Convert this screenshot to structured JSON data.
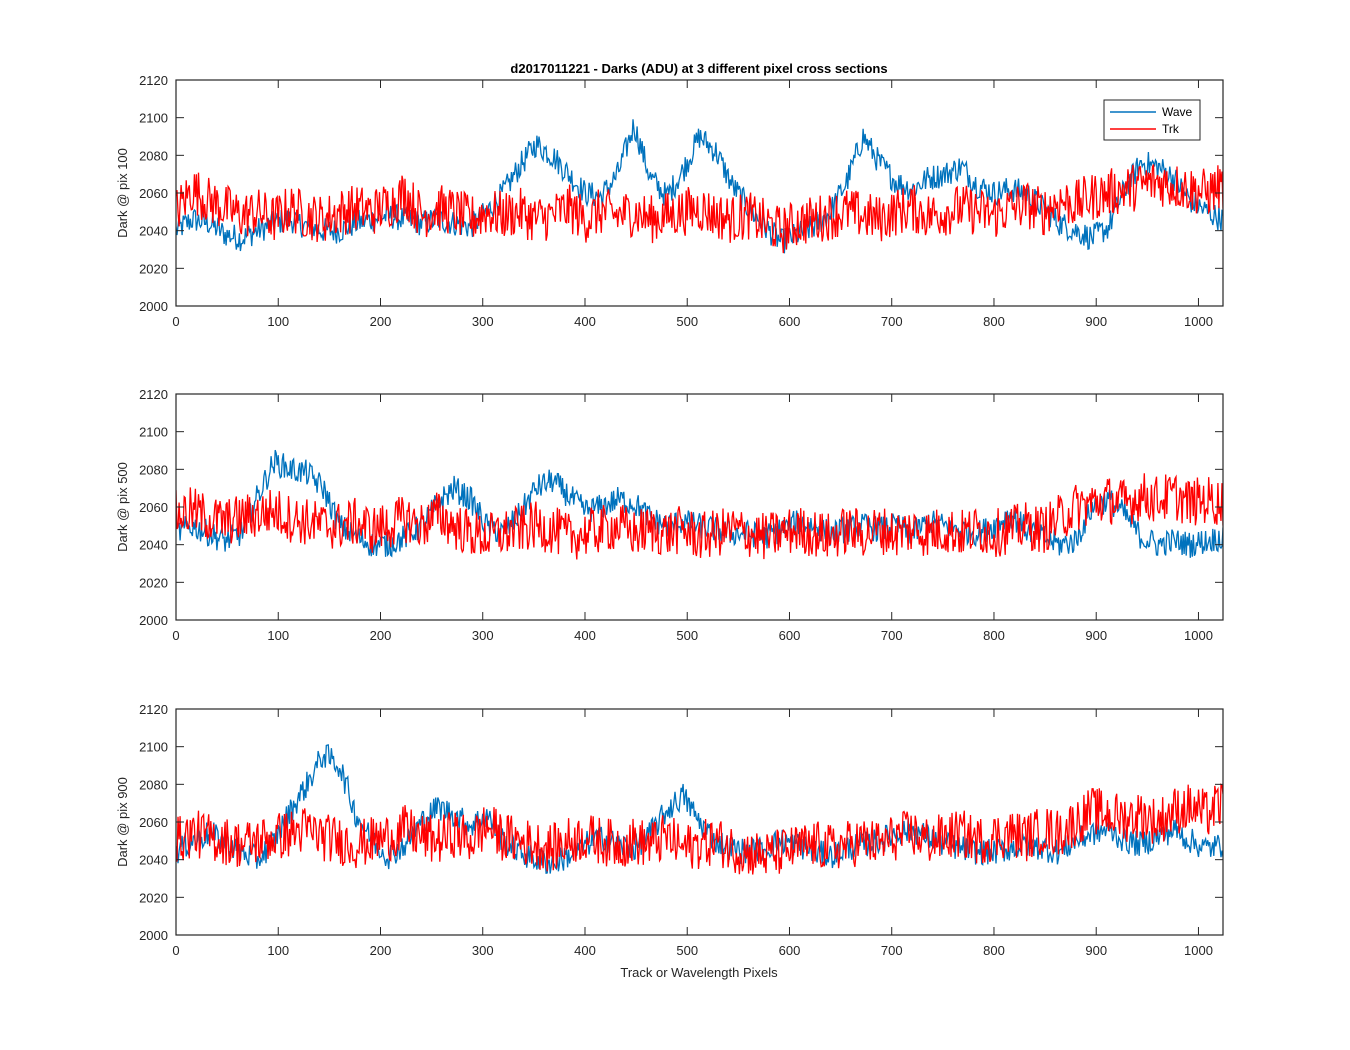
{
  "figure": {
    "title": "d2017011221 - Darks (ADU) at 3 different pixel cross sections",
    "xlabel": "Track or Wavelength Pixels"
  },
  "legend": {
    "placement": "top-right of first panel",
    "entries": [
      "Wave",
      "Trk"
    ]
  },
  "colors": {
    "Wave": "#0072BD",
    "Trk": "#FF0000",
    "axes": "#262626"
  },
  "chart_data": [
    {
      "type": "line",
      "title": "d2017011221 - Darks (ADU) at 3 different pixel cross sections",
      "xlabel": "",
      "ylabel": "Dark @ pix 100",
      "xlim": [
        0,
        1024
      ],
      "ylim": [
        2000,
        2120
      ],
      "xticks": [
        0,
        100,
        200,
        300,
        400,
        500,
        600,
        700,
        800,
        900,
        1000
      ],
      "yticks": [
        2000,
        2020,
        2040,
        2060,
        2080,
        2100,
        2120
      ],
      "grid": false,
      "legend_placement": "top-right",
      "series": [
        {
          "name": "Wave",
          "note_sampling": "approximate envelope sampled every 16 pixels",
          "x": [
            0,
            16,
            32,
            48,
            64,
            80,
            96,
            112,
            128,
            144,
            160,
            176,
            192,
            208,
            224,
            240,
            256,
            272,
            288,
            304,
            320,
            336,
            352,
            368,
            384,
            400,
            416,
            432,
            448,
            464,
            480,
            496,
            512,
            528,
            544,
            560,
            576,
            592,
            608,
            624,
            640,
            656,
            672,
            688,
            704,
            720,
            736,
            752,
            768,
            784,
            800,
            816,
            832,
            848,
            864,
            880,
            896,
            912,
            928,
            944,
            960,
            976,
            992,
            1008,
            1024
          ],
          "y": [
            2040,
            2046,
            2044,
            2038,
            2036,
            2040,
            2044,
            2046,
            2042,
            2040,
            2040,
            2044,
            2046,
            2048,
            2046,
            2044,
            2046,
            2044,
            2042,
            2050,
            2060,
            2074,
            2086,
            2080,
            2070,
            2060,
            2058,
            2070,
            2096,
            2068,
            2058,
            2072,
            2090,
            2082,
            2064,
            2052,
            2042,
            2034,
            2038,
            2042,
            2050,
            2066,
            2090,
            2076,
            2066,
            2062,
            2068,
            2070,
            2074,
            2064,
            2060,
            2062,
            2060,
            2052,
            2044,
            2040,
            2036,
            2042,
            2062,
            2076,
            2074,
            2068,
            2056,
            2050,
            2046
          ]
        },
        {
          "name": "Trk",
          "note_sampling": "approximate envelope sampled every 16 pixels",
          "x": [
            0,
            16,
            32,
            48,
            64,
            80,
            96,
            112,
            128,
            144,
            160,
            176,
            192,
            208,
            224,
            240,
            256,
            272,
            288,
            304,
            320,
            336,
            352,
            368,
            384,
            400,
            416,
            432,
            448,
            464,
            480,
            496,
            512,
            528,
            544,
            560,
            576,
            592,
            608,
            624,
            640,
            656,
            672,
            688,
            704,
            720,
            736,
            752,
            768,
            784,
            800,
            816,
            832,
            848,
            864,
            880,
            896,
            912,
            928,
            944,
            960,
            976,
            992,
            1008,
            1024
          ],
          "y": [
            2050,
            2062,
            2056,
            2052,
            2048,
            2050,
            2046,
            2052,
            2048,
            2046,
            2050,
            2052,
            2050,
            2054,
            2060,
            2048,
            2052,
            2050,
            2046,
            2050,
            2048,
            2050,
            2046,
            2048,
            2052,
            2046,
            2050,
            2048,
            2050,
            2046,
            2048,
            2050,
            2052,
            2048,
            2046,
            2048,
            2044,
            2040,
            2044,
            2046,
            2048,
            2050,
            2048,
            2046,
            2050,
            2052,
            2048,
            2050,
            2052,
            2050,
            2048,
            2052,
            2054,
            2050,
            2056,
            2054,
            2058,
            2060,
            2062,
            2064,
            2066,
            2064,
            2062,
            2060,
            2064
          ]
        }
      ]
    },
    {
      "type": "line",
      "title": "",
      "xlabel": "",
      "ylabel": "Dark @ pix 500",
      "xlim": [
        0,
        1024
      ],
      "ylim": [
        2000,
        2120
      ],
      "xticks": [
        0,
        100,
        200,
        300,
        400,
        500,
        600,
        700,
        800,
        900,
        1000
      ],
      "yticks": [
        2000,
        2020,
        2040,
        2060,
        2080,
        2100,
        2120
      ],
      "grid": false,
      "series": [
        {
          "name": "Wave",
          "note_sampling": "approximate envelope sampled every 16 pixels",
          "x": [
            0,
            16,
            32,
            48,
            64,
            80,
            96,
            112,
            128,
            144,
            160,
            176,
            192,
            208,
            224,
            240,
            256,
            272,
            288,
            304,
            320,
            336,
            352,
            368,
            384,
            400,
            416,
            432,
            448,
            464,
            480,
            496,
            512,
            528,
            544,
            560,
            576,
            592,
            608,
            624,
            640,
            656,
            672,
            688,
            704,
            720,
            736,
            752,
            768,
            784,
            800,
            816,
            832,
            848,
            864,
            880,
            896,
            912,
            928,
            944,
            960,
            976,
            992,
            1008,
            1024
          ],
          "y": [
            2046,
            2050,
            2046,
            2042,
            2046,
            2066,
            2084,
            2080,
            2078,
            2070,
            2050,
            2044,
            2040,
            2040,
            2044,
            2050,
            2062,
            2070,
            2064,
            2050,
            2046,
            2056,
            2070,
            2074,
            2066,
            2058,
            2060,
            2064,
            2062,
            2054,
            2050,
            2052,
            2050,
            2048,
            2046,
            2046,
            2044,
            2048,
            2052,
            2050,
            2046,
            2048,
            2050,
            2048,
            2050,
            2046,
            2052,
            2050,
            2048,
            2046,
            2050,
            2056,
            2048,
            2044,
            2040,
            2042,
            2060,
            2064,
            2056,
            2044,
            2040,
            2042,
            2040,
            2042,
            2044
          ]
        },
        {
          "name": "Trk",
          "note_sampling": "approximate envelope sampled every 16 pixels",
          "x": [
            0,
            16,
            32,
            48,
            64,
            80,
            96,
            112,
            128,
            144,
            160,
            176,
            192,
            208,
            224,
            240,
            256,
            272,
            288,
            304,
            320,
            336,
            352,
            368,
            384,
            400,
            416,
            432,
            448,
            464,
            480,
            496,
            512,
            528,
            544,
            560,
            576,
            592,
            608,
            624,
            640,
            656,
            672,
            688,
            704,
            720,
            736,
            752,
            768,
            784,
            800,
            816,
            832,
            848,
            864,
            880,
            896,
            912,
            928,
            944,
            960,
            976,
            992,
            1008,
            1024
          ],
          "y": [
            2056,
            2058,
            2054,
            2052,
            2054,
            2056,
            2058,
            2054,
            2052,
            2050,
            2050,
            2052,
            2048,
            2050,
            2054,
            2050,
            2056,
            2050,
            2046,
            2044,
            2046,
            2048,
            2050,
            2048,
            2044,
            2046,
            2048,
            2050,
            2046,
            2048,
            2046,
            2048,
            2044,
            2046,
            2048,
            2046,
            2044,
            2046,
            2048,
            2046,
            2044,
            2048,
            2046,
            2048,
            2046,
            2048,
            2046,
            2048,
            2046,
            2048,
            2046,
            2048,
            2050,
            2048,
            2054,
            2060,
            2062,
            2064,
            2062,
            2066,
            2064,
            2066,
            2062,
            2064,
            2062
          ]
        }
      ]
    },
    {
      "type": "line",
      "title": "",
      "xlabel": "Track or Wavelength Pixels",
      "ylabel": "Dark @ pix 900",
      "xlim": [
        0,
        1024
      ],
      "ylim": [
        2000,
        2120
      ],
      "xticks": [
        0,
        100,
        200,
        300,
        400,
        500,
        600,
        700,
        800,
        900,
        1000
      ],
      "yticks": [
        2000,
        2020,
        2040,
        2060,
        2080,
        2100,
        2120
      ],
      "grid": false,
      "series": [
        {
          "name": "Wave",
          "note_sampling": "approximate envelope sampled every 16 pixels",
          "x": [
            0,
            16,
            32,
            48,
            64,
            80,
            96,
            112,
            128,
            144,
            160,
            176,
            192,
            208,
            224,
            240,
            256,
            272,
            288,
            304,
            320,
            336,
            352,
            368,
            384,
            400,
            416,
            432,
            448,
            464,
            480,
            496,
            512,
            528,
            544,
            560,
            576,
            592,
            608,
            624,
            640,
            656,
            672,
            688,
            704,
            720,
            736,
            752,
            768,
            784,
            800,
            816,
            832,
            848,
            864,
            880,
            896,
            912,
            928,
            944,
            960,
            976,
            992,
            1008,
            1024
          ],
          "y": [
            2044,
            2050,
            2054,
            2050,
            2044,
            2040,
            2050,
            2066,
            2080,
            2096,
            2090,
            2064,
            2050,
            2042,
            2048,
            2060,
            2068,
            2064,
            2058,
            2064,
            2050,
            2044,
            2040,
            2038,
            2042,
            2048,
            2052,
            2048,
            2046,
            2054,
            2066,
            2074,
            2060,
            2050,
            2046,
            2044,
            2046,
            2050,
            2048,
            2044,
            2042,
            2046,
            2048,
            2050,
            2054,
            2056,
            2052,
            2048,
            2046,
            2044,
            2044,
            2046,
            2048,
            2046,
            2044,
            2050,
            2054,
            2056,
            2050,
            2048,
            2052,
            2056,
            2050,
            2046,
            2048
          ]
        },
        {
          "name": "Trk",
          "note_sampling": "approximate envelope sampled every 16 pixels",
          "x": [
            0,
            16,
            32,
            48,
            64,
            80,
            96,
            112,
            128,
            144,
            160,
            176,
            192,
            208,
            224,
            240,
            256,
            272,
            288,
            304,
            320,
            336,
            352,
            368,
            384,
            400,
            416,
            432,
            448,
            464,
            480,
            496,
            512,
            528,
            544,
            560,
            576,
            592,
            608,
            624,
            640,
            656,
            672,
            688,
            704,
            720,
            736,
            752,
            768,
            784,
            800,
            816,
            832,
            848,
            864,
            880,
            896,
            912,
            928,
            944,
            960,
            976,
            992,
            1008,
            1024
          ],
          "y": [
            2050,
            2054,
            2052,
            2050,
            2048,
            2050,
            2052,
            2054,
            2056,
            2052,
            2050,
            2048,
            2050,
            2052,
            2056,
            2052,
            2050,
            2054,
            2050,
            2058,
            2052,
            2050,
            2048,
            2046,
            2050,
            2052,
            2050,
            2048,
            2050,
            2048,
            2052,
            2046,
            2048,
            2050,
            2046,
            2044,
            2042,
            2044,
            2046,
            2048,
            2046,
            2048,
            2050,
            2048,
            2052,
            2054,
            2050,
            2052,
            2054,
            2050,
            2052,
            2054,
            2052,
            2056,
            2054,
            2060,
            2066,
            2064,
            2062,
            2064,
            2060,
            2066,
            2068,
            2064,
            2070
          ]
        }
      ]
    }
  ]
}
